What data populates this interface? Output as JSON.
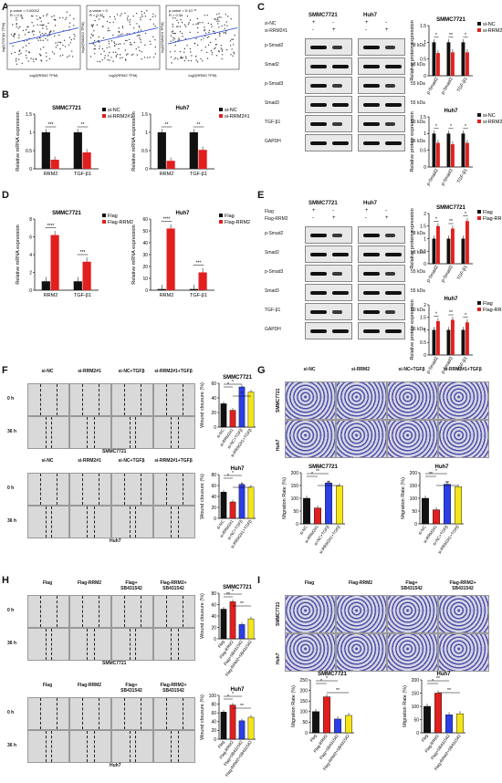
{
  "panels": {
    "A": "A",
    "B": "B",
    "C": "C",
    "D": "D",
    "E": "E",
    "F": "F",
    "G": "G",
    "H": "H",
    "I": "I"
  },
  "panel_a": {
    "scatters": [
      {
        "p": "p-value = 0.00012",
        "r": "R = 0.2",
        "ylabel": "log2(TGFβ1 TPM)",
        "xlabel": "log2(RRM2 TPM)"
      },
      {
        "p": "p-value < 0",
        "r": "R = 0.32",
        "ylabel": "log2(SMAD2 TPM)",
        "xlabel": "log2(RRM2 TPM)"
      },
      {
        "p": "p-value = 5·10⁻¹¹",
        "r": "R = 0.34",
        "ylabel": "log2(SMAD3 TPM)",
        "xlabel": "log2(RRM2 TPM)"
      }
    ]
  },
  "colors": {
    "black": "#111111",
    "red": "#e21f1f",
    "blue": "#2c3ee6",
    "yellow": "#f4e61b",
    "grey": "#777777"
  },
  "legend_sinc": {
    "a": "si-NC",
    "b": "si-RRM2#1"
  },
  "legend_flag": {
    "a": "Flag",
    "b": "Flag-RRM2"
  },
  "lines": {
    "smmc": "SMMC7721",
    "huh7": "Huh7"
  },
  "wb_c": {
    "row1": "si-NC",
    "row2": "si-RRM2#1",
    "signs1": [
      "+",
      "-",
      "+",
      "-"
    ],
    "signs2": [
      "-",
      "+",
      "-",
      "+"
    ],
    "proteins": [
      "p-Smad2",
      "Smad2",
      "p-Smad3",
      "Smad3",
      "TGF-β1",
      "GAPDH"
    ],
    "kda": [
      "58 kDa",
      "58 kDa",
      "55 kDa",
      "55 kDa",
      "50 kDa",
      "36 kDa"
    ]
  },
  "wb_e": {
    "row1": "Flag",
    "row2": "Flag-RRM2",
    "signs1": [
      "+",
      "-",
      "+",
      "-"
    ],
    "signs2": [
      "-",
      "+",
      "-",
      "+"
    ],
    "proteins": [
      "p-Smad2",
      "Smad2",
      "p-Smad3",
      "Smad3",
      "TGF-β1",
      "GAPDH"
    ],
    "kda": [
      "58 kDa",
      "58 kDa",
      "55 kDa",
      "55 kDa",
      "50 kDa",
      "36 kDa"
    ]
  },
  "ylabels": {
    "mrna": "Relative mRNA expression",
    "protein": "Relative protein expression",
    "wound": "Wound clousure (%)",
    "migration": "Migration Rate (%)"
  },
  "f_cols": [
    "si-NC",
    "si-RRM2#1",
    "si-NC+TGFβ",
    "si-RRM2#1+TGFβ"
  ],
  "h_cols": [
    "Flag",
    "Flag-RRM2",
    "Flag+\nSB431542",
    "Flag-RRM2+\nSB431542"
  ],
  "g_cols": [
    "si-NC",
    "si-RRM2",
    "si-NC+TGFβ",
    "si-RRM2#1+TGFβ"
  ],
  "i_cols": [
    "Flag",
    "Flag-RRM2",
    "Flag+\nSB431542",
    "Flag-RRM2+\nSB431542"
  ],
  "time": {
    "t0": "0 h",
    "t36": "36 h"
  },
  "chart_data": [
    {
      "id": "B1",
      "type": "bar",
      "title": "SMMC7721",
      "categories": [
        "RRM2",
        "TGF-β1"
      ],
      "series": [
        {
          "name": "si-NC",
          "values": [
            1.0,
            1.0
          ]
        },
        {
          "name": "si-RRM2#1",
          "values": [
            0.25,
            0.45
          ]
        }
      ],
      "ylim": [
        0,
        1.5
      ],
      "ticks": [
        0,
        0.5,
        1.0,
        1.5
      ],
      "sig": [
        "***",
        "**"
      ]
    },
    {
      "id": "B2",
      "type": "bar",
      "title": "Huh7",
      "categories": [
        "RRM2",
        "TGF-β1"
      ],
      "series": [
        {
          "name": "si-NC",
          "values": [
            1.0,
            1.0
          ]
        },
        {
          "name": "si-RRM2#1",
          "values": [
            0.22,
            0.52
          ]
        }
      ],
      "ylim": [
        0,
        1.5
      ],
      "ticks": [
        0,
        0.5,
        1.0,
        1.5
      ],
      "sig": [
        "**",
        "**"
      ]
    },
    {
      "id": "D1",
      "type": "bar",
      "title": "SMMC7721",
      "categories": [
        "RRM2",
        "TGF-β1"
      ],
      "series": [
        {
          "name": "Flag",
          "values": [
            1.0,
            1.0
          ]
        },
        {
          "name": "Flag-RRM2",
          "values": [
            6.2,
            3.2
          ]
        }
      ],
      "ylim": [
        0,
        8
      ],
      "ticks": [
        0,
        2,
        4,
        6,
        8
      ],
      "sig": [
        "****",
        "***"
      ]
    },
    {
      "id": "D2",
      "type": "bar",
      "title": "Huh7",
      "categories": [
        "RRM2",
        "TGF-β1"
      ],
      "series": [
        {
          "name": "Flag",
          "values": [
            1.0,
            1.0
          ]
        },
        {
          "name": "Flag-RRM2",
          "values": [
            52,
            15
          ]
        }
      ],
      "ylim": [
        0,
        60
      ],
      "ticks": [
        0,
        10,
        20,
        30,
        40,
        50,
        60
      ],
      "sig": [
        "****",
        "***"
      ]
    },
    {
      "id": "C1",
      "type": "bar",
      "title": "SMMC7721",
      "categories": [
        "p-Smad2",
        "p-Smad3",
        "TGF-β1"
      ],
      "series": [
        {
          "name": "si-NC",
          "values": [
            1.0,
            1.0,
            1.0
          ]
        },
        {
          "name": "si-RRM2#1",
          "values": [
            0.68,
            0.7,
            0.7
          ]
        }
      ],
      "ylim": [
        0,
        1.5
      ],
      "ticks": [
        0,
        0.5,
        1.0,
        1.5
      ],
      "sig": [
        "*",
        "**",
        "*"
      ]
    },
    {
      "id": "C2",
      "type": "bar",
      "title": "Huh7",
      "categories": [
        "p-Smad2",
        "p-Smad3",
        "TGF-β1"
      ],
      "series": [
        {
          "name": "si-NC",
          "values": [
            1.0,
            1.0,
            1.0
          ]
        },
        {
          "name": "si-RRM2#1",
          "values": [
            0.72,
            0.68,
            0.72
          ]
        }
      ],
      "ylim": [
        0,
        1.5
      ],
      "ticks": [
        0,
        0.5,
        1.0,
        1.5
      ],
      "sig": [
        "*",
        "*",
        "*"
      ]
    },
    {
      "id": "E1",
      "type": "bar",
      "title": "SMMC7721",
      "categories": [
        "p-Smad2",
        "p-Smad3",
        "TGF-β1"
      ],
      "series": [
        {
          "name": "Flag",
          "values": [
            1.0,
            1.0,
            1.0
          ]
        },
        {
          "name": "Flag-RRM2",
          "values": [
            1.5,
            1.4,
            1.7
          ]
        }
      ],
      "ylim": [
        0,
        2.0
      ],
      "ticks": [
        0,
        0.5,
        1.0,
        1.5,
        2.0
      ],
      "sig": [
        "*",
        "**",
        "*"
      ]
    },
    {
      "id": "E2",
      "type": "bar",
      "title": "Huh7",
      "categories": [
        "p-Smad2",
        "p-Smad3",
        "TGF-β1"
      ],
      "series": [
        {
          "name": "Flag",
          "values": [
            1.0,
            1.0,
            1.0
          ]
        },
        {
          "name": "Flag-RRM2",
          "values": [
            1.35,
            1.4,
            1.3
          ]
        }
      ],
      "ylim": [
        0,
        2.0
      ],
      "ticks": [
        0,
        0.5,
        1.0,
        1.5,
        2.0
      ],
      "sig": [
        "*",
        "**",
        "*"
      ]
    },
    {
      "id": "F1",
      "type": "bar",
      "title": "SMMC7721",
      "categories": [
        "si-NC",
        "si-RRM2#1",
        "si-NC+TGFβ",
        "si-RRM2#1+TGFβ"
      ],
      "values": [
        32,
        23,
        55,
        48
      ],
      "ylim": [
        0,
        60
      ],
      "ticks": [
        0,
        20,
        40,
        60
      ],
      "sig": [
        "*",
        "*",
        "*"
      ]
    },
    {
      "id": "F2",
      "type": "bar",
      "title": "Huh7",
      "categories": [
        "si-NC",
        "si-RRM2#1",
        "si-NC+TGFβ",
        "si-RRM2#1+TGFβ"
      ],
      "values": [
        48,
        30,
        62,
        57
      ],
      "ylim": [
        0,
        80
      ],
      "ticks": [
        0,
        20,
        40,
        60,
        80
      ],
      "sig": [
        "*",
        "*",
        "*"
      ]
    },
    {
      "id": "G1",
      "type": "bar",
      "title": "SMMC7721",
      "categories": [
        "si-NC",
        "si-RRM2#1",
        "si-NC+TGFβ",
        "si-RRM2#1+TGFβ"
      ],
      "values": [
        100,
        62,
        160,
        148
      ],
      "ylim": [
        0,
        200
      ],
      "ticks": [
        0,
        50,
        100,
        150,
        200
      ],
      "sig": [
        "*",
        "**",
        "**"
      ]
    },
    {
      "id": "G2",
      "type": "bar",
      "title": "Huh7",
      "categories": [
        "si-NC",
        "si-RRM2#1",
        "si-NC+TGFβ",
        "si-RRM2#1+TGFβ"
      ],
      "values": [
        100,
        55,
        155,
        145
      ],
      "ylim": [
        0,
        200
      ],
      "ticks": [
        0,
        50,
        100,
        150,
        200
      ],
      "sig": [
        "**",
        "*",
        "**"
      ]
    },
    {
      "id": "H1",
      "type": "bar",
      "title": "SMMC7721",
      "categories": [
        "Flag",
        "Flag-RRM2",
        "Flag+SB431542",
        "Flag-RRM2+SB431542"
      ],
      "values": [
        52,
        65,
        25,
        35
      ],
      "ylim": [
        0,
        80
      ],
      "ticks": [
        0,
        20,
        40,
        60,
        80
      ],
      "sig": [
        "**",
        "*",
        "**"
      ]
    },
    {
      "id": "H2",
      "type": "bar",
      "title": "Huh7",
      "categories": [
        "Flag",
        "Flag-RRM2",
        "Flag+SB431542",
        "Flag-RRM2+SB431542"
      ],
      "values": [
        62,
        78,
        42,
        50
      ],
      "ylim": [
        0,
        100
      ],
      "ticks": [
        0,
        20,
        40,
        60,
        80,
        100
      ],
      "sig": [
        "*",
        "*",
        "**"
      ]
    },
    {
      "id": "I1",
      "type": "bar",
      "title": "SMMC7721",
      "categories": [
        "Flag",
        "Flag-RRM2",
        "Flag+SB431542",
        "Flag-RRM2+SB431542"
      ],
      "values": [
        100,
        170,
        65,
        82
      ],
      "ylim": [
        0,
        250
      ],
      "ticks": [
        0,
        50,
        100,
        150,
        200,
        250
      ],
      "sig": [
        "*",
        "*",
        "**"
      ]
    },
    {
      "id": "I2",
      "type": "bar",
      "title": "Huh7",
      "categories": [
        "Flag",
        "Flag-RRM2",
        "Flag+SB431542",
        "Flag-RRM2+SB431542"
      ],
      "values": [
        100,
        150,
        68,
        72
      ],
      "ylim": [
        0,
        200
      ],
      "ticks": [
        0,
        50,
        100,
        150,
        200
      ],
      "sig": [
        "*",
        "**",
        "**"
      ]
    }
  ]
}
